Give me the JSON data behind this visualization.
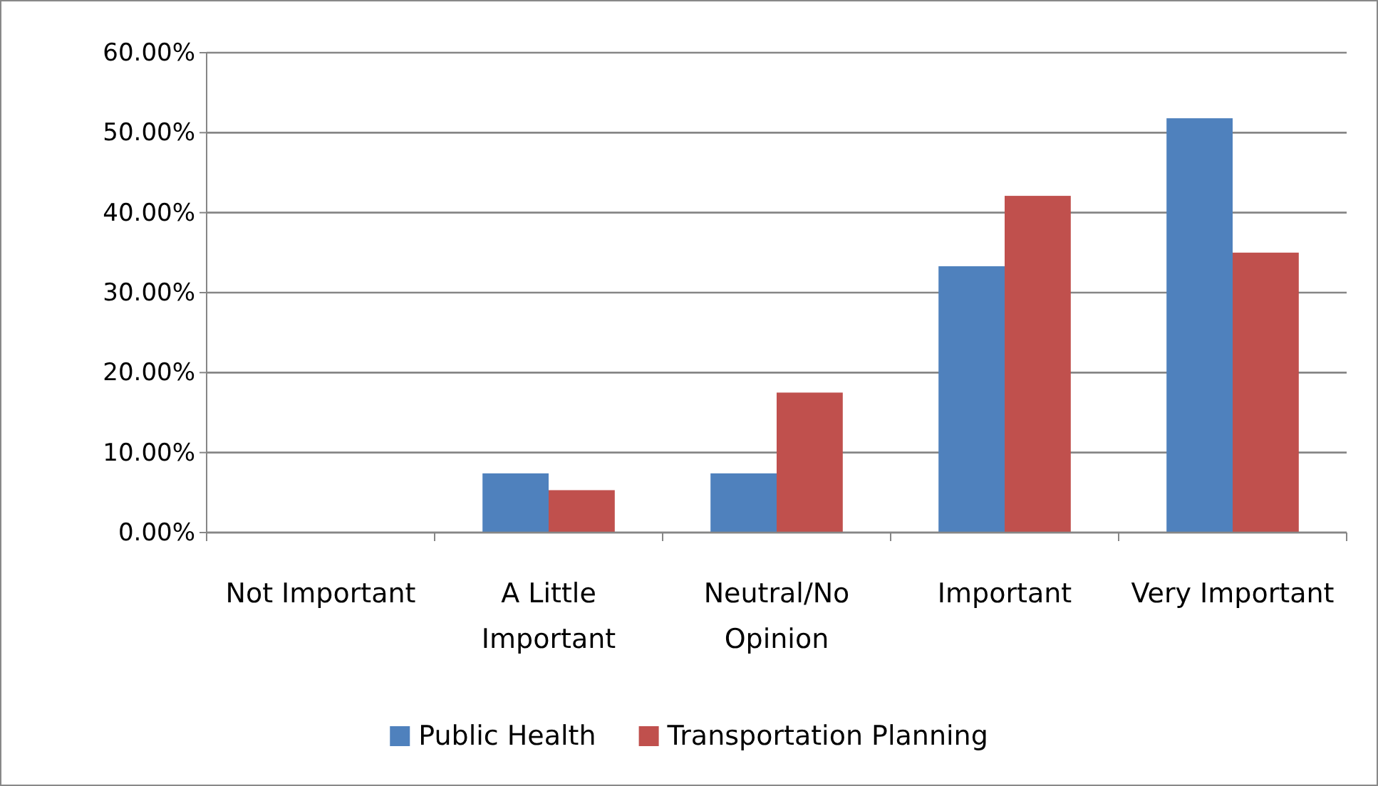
{
  "chart_data": {
    "type": "bar",
    "categories": [
      "Not Important",
      "A Little Important",
      "Neutral/No Opinion",
      "Important",
      "Very Important"
    ],
    "series": [
      {
        "name": "Public Health",
        "color": "#4f81bd",
        "values": [
          0,
          7.4,
          7.4,
          33.3,
          51.8
        ]
      },
      {
        "name": "Transportation Planning",
        "color": "#c0504d",
        "values": [
          0,
          5.3,
          17.5,
          42.1,
          35.0
        ]
      }
    ],
    "ylim": [
      0,
      60
    ],
    "yticks": [
      {
        "value": 0,
        "label": "0.00%"
      },
      {
        "value": 10,
        "label": "10.00%"
      },
      {
        "value": 20,
        "label": "20.00%"
      },
      {
        "value": 30,
        "label": "30.00%"
      },
      {
        "value": 40,
        "label": "40.00%"
      },
      {
        "value": 50,
        "label": "50.00%"
      },
      {
        "value": 60,
        "label": "60.00%"
      }
    ],
    "grid": "y",
    "legend": "bottom"
  }
}
